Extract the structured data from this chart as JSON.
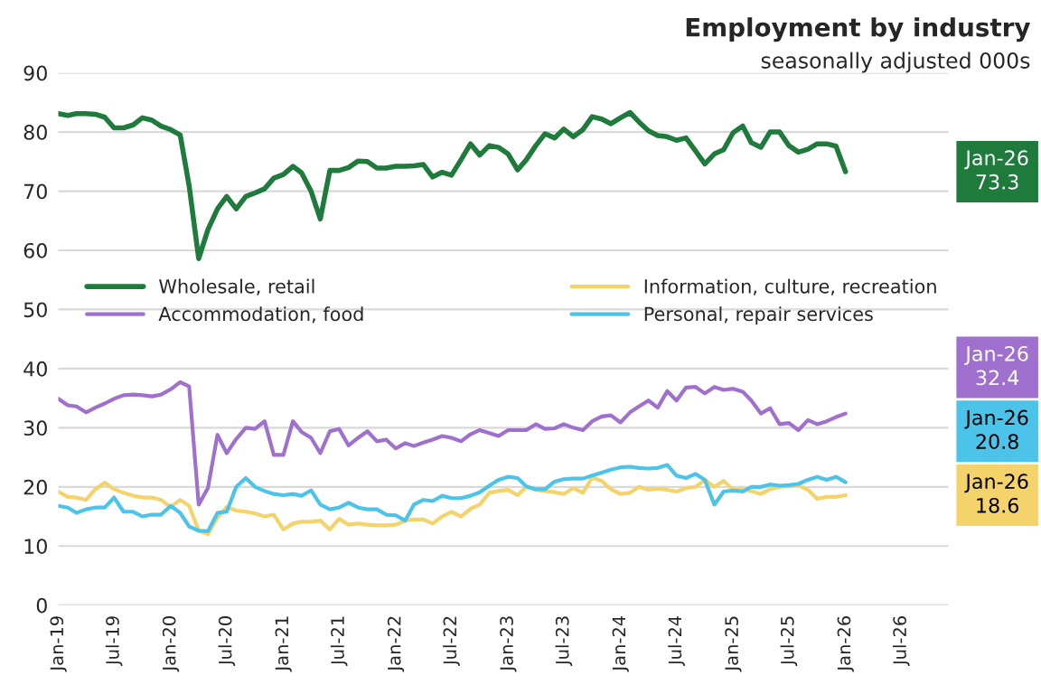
{
  "chart_data": {
    "type": "line",
    "title": "Employment by industry",
    "subtitle": "seasonally adjusted 000s",
    "x": [
      "2019-01",
      "2019-02",
      "2019-03",
      "2019-04",
      "2019-05",
      "2019-06",
      "2019-07",
      "2019-08",
      "2019-09",
      "2019-10",
      "2019-11",
      "2019-12",
      "2020-01",
      "2020-02",
      "2020-03",
      "2020-04",
      "2020-05",
      "2020-06",
      "2020-07",
      "2020-08",
      "2020-09",
      "2020-10",
      "2020-11",
      "2020-12",
      "2021-01",
      "2021-02",
      "2021-03",
      "2021-04",
      "2021-05",
      "2021-06",
      "2021-07",
      "2021-08",
      "2021-09",
      "2021-10",
      "2021-11",
      "2021-12",
      "2022-01",
      "2022-02",
      "2022-03",
      "2022-04",
      "2022-05",
      "2022-06",
      "2022-07",
      "2022-08",
      "2022-09",
      "2022-10",
      "2022-11",
      "2022-12",
      "2023-01",
      "2023-02",
      "2023-03",
      "2023-04",
      "2023-05",
      "2023-06",
      "2023-07",
      "2023-08",
      "2023-09",
      "2023-10",
      "2023-11",
      "2023-12",
      "2024-01",
      "2024-02",
      "2024-03",
      "2024-04",
      "2024-05",
      "2024-06",
      "2024-07",
      "2024-08",
      "2024-09",
      "2024-10",
      "2024-11",
      "2024-12",
      "2025-01",
      "2025-02",
      "2025-03",
      "2025-04",
      "2025-05",
      "2025-06",
      "2025-07",
      "2025-08",
      "2025-09",
      "2025-10",
      "2025-11",
      "2025-12",
      "2026-01"
    ],
    "series": [
      {
        "name": "Wholesale, retail",
        "color": "#1e7b3c",
        "values": [
          83.1,
          82.8,
          83.1,
          83.1,
          83,
          82.5,
          80.7,
          80.7,
          81.2,
          82.4,
          82,
          81,
          80.4,
          79.5,
          70.9,
          58.6,
          63.5,
          67,
          69.1,
          67,
          69.1,
          69.7,
          70.4,
          72.2,
          72.8,
          74.2,
          73.1,
          70,
          65.3,
          73.5,
          73.5,
          74,
          75.1,
          75,
          73.9,
          73.9,
          74.2,
          74.2,
          74.3,
          74.5,
          72.4,
          73.2,
          72.7,
          75.3,
          78,
          76.1,
          77.7,
          77.4,
          76.3,
          73.6,
          75.3,
          77.7,
          79.7,
          79,
          80.5,
          79.2,
          80.4,
          82.6,
          82.2,
          81.4,
          82.4,
          83.3,
          81.7,
          80.2,
          79.4,
          79.2,
          78.6,
          79,
          76.8,
          74.6,
          76.3,
          77,
          79.9,
          81,
          78.2,
          77.4,
          80,
          80,
          77.7,
          76.6,
          77.1,
          78,
          78,
          77.6,
          73.3
        ]
      },
      {
        "name": "Information, culture, recreation",
        "color": "#f5d36b",
        "values": [
          19.2,
          18.3,
          18.2,
          17.8,
          19.6,
          20.7,
          19.6,
          19,
          18.5,
          18.2,
          18.2,
          17.8,
          16.6,
          17.8,
          16.8,
          12.6,
          12,
          14.8,
          16.6,
          16,
          15.8,
          15.5,
          15,
          15.3,
          12.8,
          13.8,
          14.1,
          14.1,
          14.3,
          12.8,
          14.6,
          13.6,
          13.8,
          13.6,
          13.5,
          13.5,
          13.6,
          14.3,
          14.5,
          14.5,
          13.8,
          15,
          15.8,
          15,
          16.3,
          17,
          19,
          19.3,
          19.5,
          18.6,
          20,
          19.5,
          19.3,
          19.1,
          18.8,
          19.8,
          19,
          21.6,
          21,
          19.6,
          18.8,
          19,
          20,
          19.5,
          19.7,
          19.5,
          19.2,
          19.8,
          20,
          21.2,
          20,
          21,
          19.5,
          19.6,
          19.3,
          18.8,
          19.6,
          20,
          20.1,
          20.3,
          19.5,
          18,
          18.3,
          18.3,
          18.6
        ]
      },
      {
        "name": "Accommodation, food",
        "color": "#a070cf",
        "values": [
          34.9,
          33.8,
          33.6,
          32.6,
          33.4,
          34.1,
          34.9,
          35.5,
          35.6,
          35.5,
          35.3,
          35.6,
          36.5,
          37.7,
          37,
          17,
          19.8,
          28.8,
          25.7,
          28.1,
          30,
          29.8,
          31.1,
          25.4,
          25.4,
          31.1,
          29.3,
          28.3,
          25.7,
          29.4,
          29.8,
          27,
          28.3,
          29.4,
          27.7,
          28,
          26.5,
          27.4,
          26.9,
          27.5,
          28,
          28.6,
          28.3,
          27.7,
          28.9,
          29.6,
          29.1,
          28.6,
          29.6,
          29.6,
          29.6,
          30.6,
          29.8,
          29.9,
          30.6,
          30,
          29.6,
          31.1,
          31.9,
          32.1,
          30.9,
          32.6,
          33.6,
          34.6,
          33.4,
          36.2,
          34.6,
          36.8,
          36.9,
          35.8,
          36.9,
          36.4,
          36.6,
          36.1,
          34.6,
          32.4,
          33.3,
          30.6,
          30.8,
          29.6,
          31.3,
          30.6,
          31.1,
          31.8,
          32.4
        ]
      },
      {
        "name": "Personal, repair services",
        "color": "#4cc4ea",
        "values": [
          16.8,
          16.5,
          15.6,
          16.2,
          16.5,
          16.5,
          18.2,
          15.8,
          15.8,
          15,
          15.3,
          15.3,
          16.8,
          15.6,
          13.3,
          12.6,
          12.5,
          15.6,
          15.8,
          20,
          21.5,
          20,
          19.3,
          18.8,
          18.6,
          18.8,
          18.5,
          19.4,
          17,
          16.2,
          16.5,
          17.3,
          16.5,
          16.2,
          16.2,
          15.3,
          15.2,
          14.3,
          17,
          17.8,
          17.6,
          18.5,
          18.1,
          18.1,
          18.5,
          19.1,
          20.2,
          21.2,
          21.7,
          21.5,
          20.1,
          19.6,
          19.6,
          20.9,
          21.3,
          21.4,
          21.4,
          21.9,
          22.4,
          22.9,
          23.3,
          23.4,
          23.2,
          23.1,
          23.2,
          23.7,
          21.9,
          21.5,
          22.2,
          21.2,
          17,
          19.2,
          19.4,
          19.2,
          20,
          20,
          20.4,
          20.2,
          20.3,
          20.5,
          21.2,
          21.7,
          21.2,
          21.7,
          20.8
        ]
      }
    ],
    "annotations": [
      "Jan-26\n73.3",
      "Jan-26\n18.6",
      "Jan-26\n32.4",
      "Jan-26\n20.8"
    ],
    "xlim": [
      "2019-01",
      "2026-12"
    ],
    "xticks": [
      {
        "value": "2019-01",
        "label": "Jan-19"
      },
      {
        "value": "2019-07",
        "label": "Jul-19"
      },
      {
        "value": "2020-01",
        "label": "Jan-20"
      },
      {
        "value": "2020-07",
        "label": "Jul-20"
      },
      {
        "value": "2021-01",
        "label": "Jan-21"
      },
      {
        "value": "2021-07",
        "label": "Jul-21"
      },
      {
        "value": "2022-01",
        "label": "Jan-22"
      },
      {
        "value": "2022-07",
        "label": "Jul-22"
      },
      {
        "value": "2023-01",
        "label": "Jan-23"
      },
      {
        "value": "2023-07",
        "label": "Jul-23"
      },
      {
        "value": "2024-01",
        "label": "Jan-24"
      },
      {
        "value": "2024-07",
        "label": "Jul-24"
      },
      {
        "value": "2025-01",
        "label": "Jan-25"
      },
      {
        "value": "2025-07",
        "label": "Jul-25"
      },
      {
        "value": "2026-01",
        "label": "Jan-26"
      },
      {
        "value": "2026-07",
        "label": "Jul-26"
      }
    ],
    "ylim": [
      0,
      90
    ],
    "yticks": [
      0,
      10,
      20,
      30,
      40,
      50,
      60,
      70,
      80,
      90
    ],
    "grid": "y",
    "legend": "center",
    "marker": "none",
    "line_style": "solid"
  }
}
